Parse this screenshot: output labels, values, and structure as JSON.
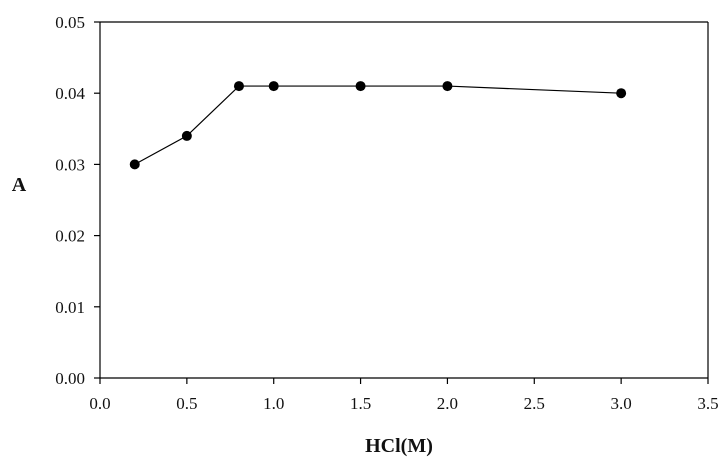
{
  "chart_data": {
    "type": "line",
    "title": "",
    "xlabel": "HCl(M)",
    "ylabel": "A",
    "xlim": [
      0.0,
      3.5
    ],
    "ylim": [
      0.0,
      0.05
    ],
    "x_ticks": [
      "0.0",
      "0.5",
      "1.0",
      "1.5",
      "2.0",
      "2.5",
      "3.0",
      "3.5"
    ],
    "y_ticks": [
      "0.00",
      "0.01",
      "0.02",
      "0.03",
      "0.04",
      "0.05"
    ],
    "grid": false,
    "legend": "none",
    "series": [
      {
        "x": [
          0.2,
          0.5,
          0.8,
          1.0,
          1.5,
          2.0,
          3.0
        ],
        "y": [
          0.03,
          0.034,
          0.041,
          0.041,
          0.041,
          0.041,
          0.04
        ],
        "color": "#000000",
        "marker": "circle"
      }
    ]
  }
}
